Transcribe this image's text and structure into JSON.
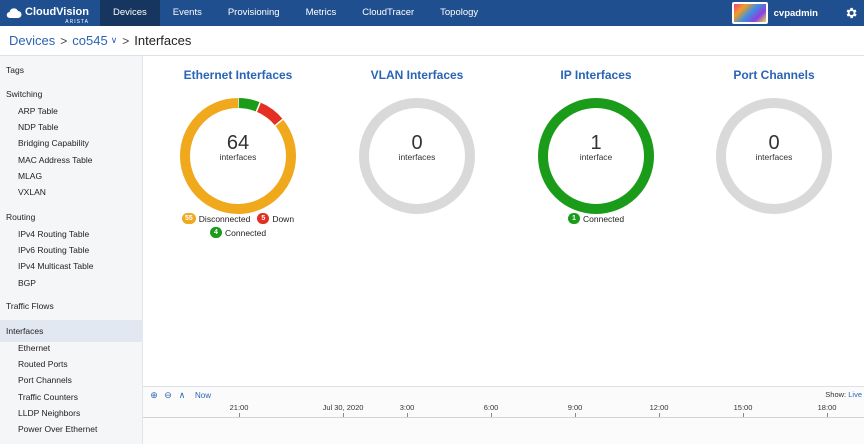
{
  "app": {
    "logo_text": "CloudVision",
    "logo_sub": "ARISTA"
  },
  "nav": {
    "items": [
      "Devices",
      "Events",
      "Provisioning",
      "Metrics",
      "CloudTracer",
      "Topology"
    ],
    "active": "Devices",
    "username": "cvpadmin"
  },
  "breadcrumb": {
    "root": "Devices",
    "device": "co545",
    "current": "Interfaces"
  },
  "sidebar": {
    "sections": [
      {
        "label": "Tags",
        "items": []
      },
      {
        "label": "Switching",
        "items": [
          "ARP Table",
          "NDP Table",
          "Bridging Capability",
          "MAC Address Table",
          "MLAG",
          "VXLAN"
        ]
      },
      {
        "label": "Routing",
        "items": [
          "IPv4 Routing Table",
          "IPv6 Routing Table",
          "IPv4 Multicast Table",
          "BGP"
        ]
      },
      {
        "label": "Traffic Flows",
        "items": []
      },
      {
        "label": "Interfaces",
        "items": [
          "Ethernet",
          "Routed Ports",
          "Port Channels",
          "Traffic Counters",
          "LLDP Neighbors",
          "Power Over Ethernet"
        ]
      }
    ],
    "selected": "Interfaces"
  },
  "cards": [
    {
      "title": "Ethernet Interfaces",
      "count": "64",
      "unit": "interfaces",
      "segments": [
        {
          "label": "Connected",
          "value": 4,
          "color": "#1a9b1a"
        },
        {
          "label": "Down",
          "value": 5,
          "color": "#e33022"
        },
        {
          "label": "Disconnected",
          "value": 55,
          "color": "#f0a91d"
        }
      ],
      "legend": [
        {
          "count": "55",
          "label": "Disconnected",
          "color": "orange"
        },
        {
          "count": "5",
          "label": "Down",
          "color": "red"
        },
        {
          "count": "4",
          "label": "Connected",
          "color": "green"
        }
      ]
    },
    {
      "title": "VLAN Interfaces",
      "count": "0",
      "unit": "interfaces",
      "segments": [],
      "legend": []
    },
    {
      "title": "IP Interfaces",
      "count": "1",
      "unit": "interface",
      "segments": [
        {
          "label": "Connected",
          "value": 1,
          "color": "#1a9b1a"
        }
      ],
      "legend": [
        {
          "count": "1",
          "label": "Connected",
          "color": "green"
        }
      ]
    },
    {
      "title": "Port Channels",
      "count": "0",
      "unit": "interfaces",
      "segments": [],
      "legend": []
    }
  ],
  "timeline": {
    "now_label": "Now",
    "show_label": "Show:",
    "show_value": "Live",
    "ticks": [
      "21:00",
      "Jul 30, 2020",
      "3:00",
      "6:00",
      "9:00",
      "12:00",
      "15:00",
      "18:00"
    ]
  },
  "colors": {
    "nav_bg": "#1f4f8f",
    "accent": "#2a64b5",
    "empty_ring": "#d9d9d9"
  }
}
